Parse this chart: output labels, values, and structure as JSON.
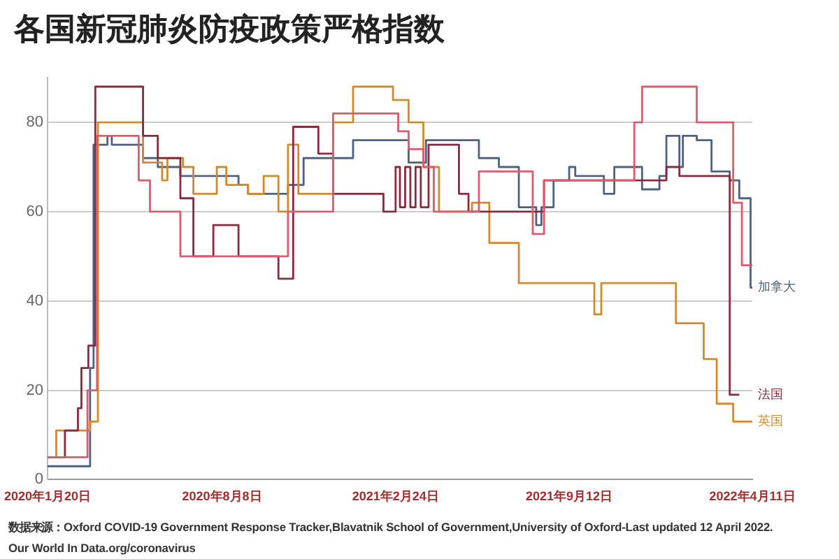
{
  "chart_data": {
    "type": "step",
    "title": "各国新冠肺炎防疫政策严格指数",
    "xlim": [
      "2020-01-20",
      "2022-04-11"
    ],
    "xticks": [
      {
        "value": "2020-01-20",
        "label": "2020年1月20日"
      },
      {
        "value": "2020-08-08",
        "label": "2020年8月8日"
      },
      {
        "value": "2021-02-24",
        "label": "2021年2月24日"
      },
      {
        "value": "2021-09-12",
        "label": "2021年9月12日"
      },
      {
        "value": "2022-04-11",
        "label": "2022年4月11日"
      }
    ],
    "ylim": [
      0,
      90
    ],
    "yticks": [
      0,
      20,
      40,
      60,
      80
    ],
    "grid": "y",
    "legend": false,
    "marker": "none",
    "series": [
      {
        "color": "#e05a6e",
        "x": [
          "2020-01-20",
          "2020-03-06",
          "2020-03-17",
          "2020-05-04",
          "2020-05-17",
          "2020-06-21",
          "2020-10-23",
          "2020-12-14",
          "2021-02-27",
          "2021-03-11",
          "2021-03-28",
          "2021-04-09",
          "2021-05-31",
          "2021-08-01",
          "2021-08-14",
          "2021-11-26",
          "2021-12-05",
          "2022-02-06",
          "2022-03-20",
          "2022-03-30",
          "2022-04-11"
        ],
        "values": [
          5,
          20,
          77,
          67,
          60,
          50,
          60,
          82,
          78,
          74,
          70,
          60,
          69,
          55,
          67,
          80,
          88,
          80,
          62,
          48,
          48
        ]
      },
      {
        "name": "法国",
        "color": "#8b2a3f",
        "x": [
          "2020-01-20",
          "2020-02-09",
          "2020-02-24",
          "2020-02-28",
          "2020-03-07",
          "2020-03-15",
          "2020-05-09",
          "2020-05-26",
          "2020-06-21",
          "2020-07-06",
          "2020-07-29",
          "2020-08-27",
          "2020-10-12",
          "2020-10-29",
          "2020-11-27",
          "2020-12-14",
          "2021-02-10",
          "2021-02-24",
          "2021-03-01",
          "2021-03-07",
          "2021-03-13",
          "2021-03-19",
          "2021-03-25",
          "2021-04-03",
          "2021-05-08",
          "2021-05-19",
          "2021-08-14",
          "2022-01-02",
          "2022-01-17",
          "2022-03-16",
          "2022-03-27"
        ],
        "values": [
          5,
          11,
          16,
          25,
          30,
          88,
          77,
          72,
          63,
          50,
          57,
          50,
          45,
          79,
          73,
          64,
          60,
          70,
          61,
          70,
          61,
          70,
          61,
          75,
          64,
          60,
          67,
          70,
          68,
          19,
          19
        ]
      },
      {
        "name": "英国",
        "color": "#d4892b",
        "x": [
          "2020-01-20",
          "2020-01-30",
          "2020-03-09",
          "2020-03-18",
          "2020-05-09",
          "2020-05-31",
          "2020-06-06",
          "2020-06-24",
          "2020-07-06",
          "2020-08-02",
          "2020-08-13",
          "2020-09-07",
          "2020-09-25",
          "2020-10-12",
          "2020-10-23",
          "2020-11-04",
          "2020-12-14",
          "2021-01-06",
          "2021-02-21",
          "2021-03-11",
          "2021-03-28",
          "2021-04-15",
          "2021-05-23",
          "2021-06-12",
          "2021-07-16",
          "2021-10-11",
          "2021-10-19",
          "2022-01-13",
          "2022-02-14",
          "2022-03-01",
          "2022-03-20",
          "2022-04-11"
        ],
        "values": [
          5,
          11,
          13,
          80,
          71,
          67,
          72,
          70,
          64,
          70,
          66,
          64,
          68,
          60,
          75,
          64,
          80,
          88,
          85,
          80,
          70,
          60,
          62,
          53,
          44,
          37,
          44,
          35,
          27,
          17,
          13,
          13
        ]
      },
      {
        "name": "加拿大",
        "color": "#4d6280",
        "x": [
          "2020-01-20",
          "2020-03-09",
          "2020-03-13",
          "2020-03-29",
          "2020-04-03",
          "2020-05-09",
          "2020-05-26",
          "2020-06-21",
          "2020-08-27",
          "2020-09-07",
          "2020-10-23",
          "2020-11-10",
          "2021-01-06",
          "2021-03-11",
          "2021-03-31",
          "2021-05-31",
          "2021-06-23",
          "2021-07-16",
          "2021-08-05",
          "2021-08-11",
          "2021-08-25",
          "2021-09-12",
          "2021-09-19",
          "2021-10-22",
          "2021-11-03",
          "2021-12-05",
          "2021-12-25",
          "2022-01-02",
          "2022-01-17",
          "2022-01-21",
          "2022-02-06",
          "2022-02-23",
          "2022-03-16",
          "2022-03-27",
          "2022-04-09",
          "2022-04-11"
        ],
        "values": [
          3,
          25,
          75,
          77,
          75,
          72,
          70,
          68,
          66,
          64,
          66,
          72,
          76,
          71,
          76,
          72,
          70,
          61,
          57,
          61,
          67,
          70,
          68,
          64,
          70,
          65,
          68,
          77,
          70,
          77,
          76,
          69,
          67,
          63,
          43,
          43
        ]
      }
    ],
    "annotations": [
      "数据来源：Oxford COVID-19 Government Response Tracker,Blavatnik School of Government,University of Oxford-Last updated 12 April 2022.",
      "Our World In Data.org/coronavirus"
    ]
  }
}
